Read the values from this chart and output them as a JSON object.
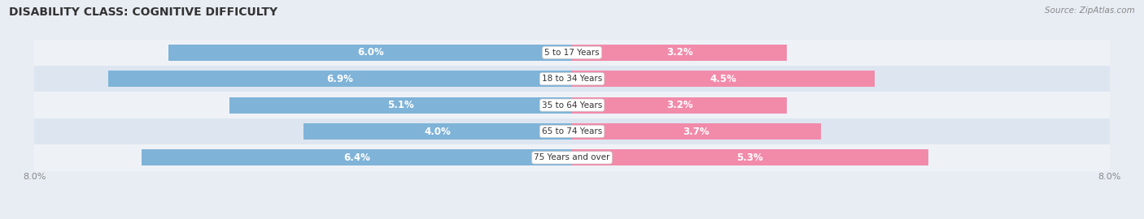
{
  "title": "DISABILITY CLASS: COGNITIVE DIFFICULTY",
  "source": "Source: ZipAtlas.com",
  "categories": [
    "5 to 17 Years",
    "18 to 34 Years",
    "35 to 64 Years",
    "65 to 74 Years",
    "75 Years and over"
  ],
  "male_values": [
    6.0,
    6.9,
    5.1,
    4.0,
    6.4
  ],
  "female_values": [
    3.2,
    4.5,
    3.2,
    3.7,
    5.3
  ],
  "max_val": 8.0,
  "male_color": "#7fb3d8",
  "female_color": "#f28aaa",
  "row_bg_light": "#eef2f7",
  "row_bg_dark": "#dde6f0",
  "fig_bg": "#e8edf4",
  "title_fontsize": 10,
  "source_fontsize": 7.5,
  "bar_label_fontsize": 8.5,
  "category_fontsize": 7.5,
  "axis_label_fontsize": 8,
  "legend_fontsize": 8.5,
  "bar_height": 0.62
}
